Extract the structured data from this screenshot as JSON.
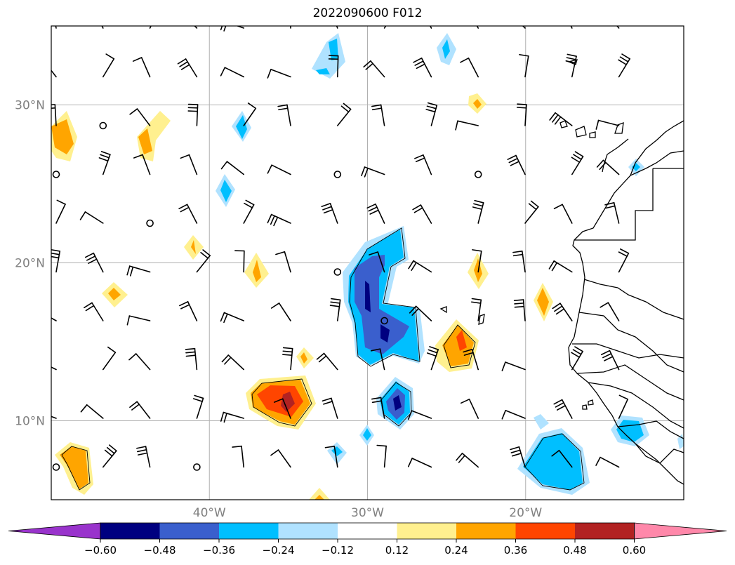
{
  "title": "2022090600 F012",
  "map": {
    "lon_min": -50,
    "lon_max": -10,
    "lat_min": 5,
    "lat_max": 35,
    "lat_ticks": [
      {
        "value": 10,
        "label": "10°N"
      },
      {
        "value": 20,
        "label": "20°N"
      },
      {
        "value": 30,
        "label": "30°N"
      }
    ],
    "lon_ticks": [
      {
        "value": -40,
        "label": "40°W"
      },
      {
        "value": -30,
        "label": "30°W"
      },
      {
        "value": -20,
        "label": "20°W"
      }
    ],
    "gridlines": true,
    "tick_label_color": "#808080"
  },
  "colorbar": {
    "colors": [
      "#9933cc",
      "#000080",
      "#3a5fcd",
      "#00bfff",
      "#b0e2ff",
      "#ffffff",
      "#fff08f",
      "#ffa500",
      "#ff4500",
      "#b22222",
      "#ff88aa"
    ],
    "ticks": [
      "−0.60",
      "−0.48",
      "−0.36",
      "−0.24",
      "−0.12",
      "0.12",
      "0.24",
      "0.36",
      "0.48",
      "0.60"
    ],
    "extend": "both"
  }
}
